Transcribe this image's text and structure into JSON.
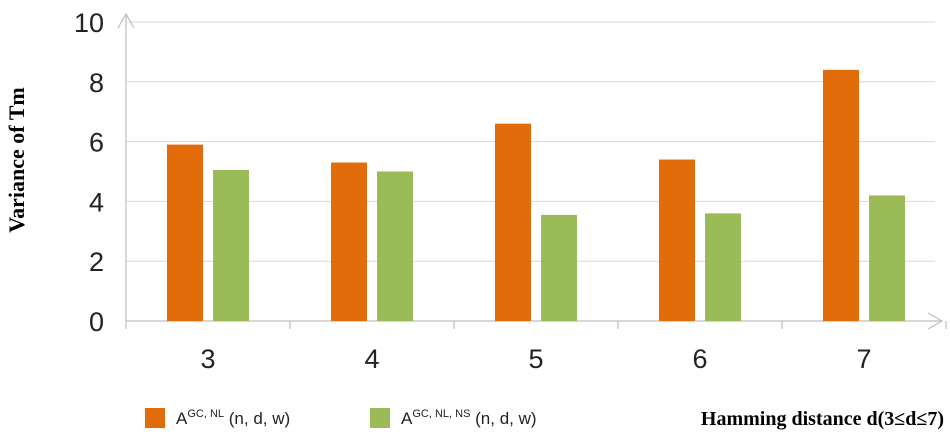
{
  "chart_data": {
    "type": "bar",
    "ylabel": "Variance of Tm",
    "xlabel": "Hamming distance d(3≤d≤7)",
    "categories": [
      "3",
      "4",
      "5",
      "6",
      "7"
    ],
    "ylim": [
      0,
      10
    ],
    "yticks": [
      0,
      2,
      4,
      6,
      8,
      10
    ],
    "grid": true,
    "legend_position": "bottom",
    "series": [
      {
        "name": "AGC, NL (n, d, w)",
        "name_parts": {
          "base": "A",
          "sup": "GC, NL",
          "rest": " (n, d, w)"
        },
        "color": "#E36C0A",
        "values": [
          5.9,
          5.3,
          6.6,
          5.4,
          8.4
        ]
      },
      {
        "name": "AGC, NL, NS (n, d, w)",
        "name_parts": {
          "base": "A",
          "sup": "GC, NL, NS",
          "rest": " (n, d, w)"
        },
        "color": "#9BBB59",
        "values": [
          5.05,
          5.0,
          3.55,
          3.6,
          4.2
        ]
      }
    ]
  }
}
